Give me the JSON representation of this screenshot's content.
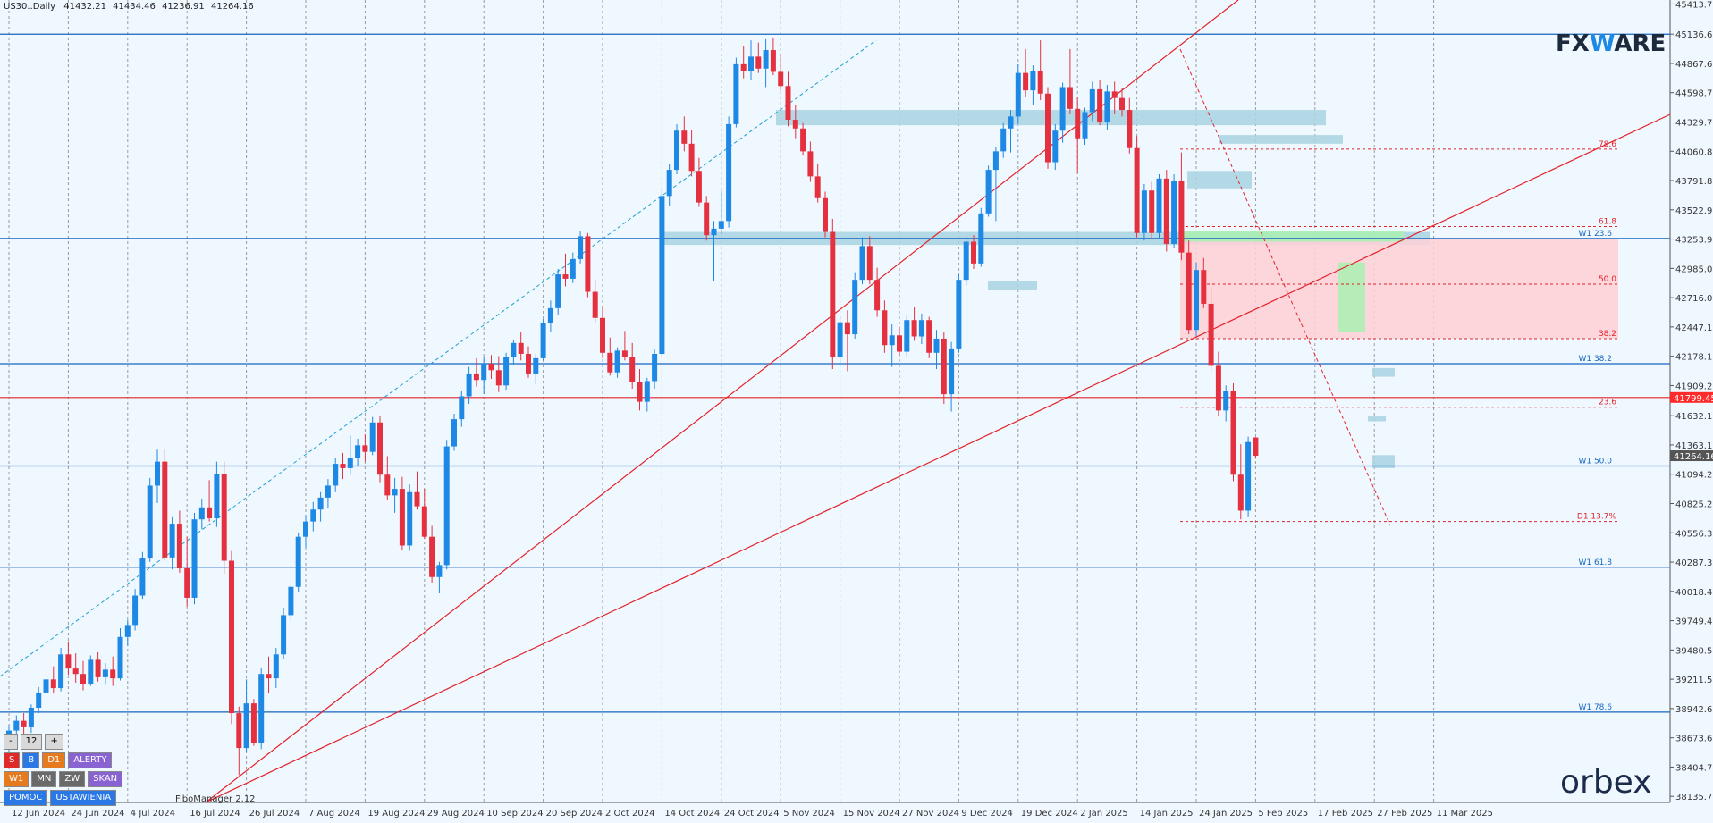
{
  "symbol": "US30..Daily",
  "ohlc": [
    "41432.21",
    "41434.46",
    "41236.91",
    "41264.16"
  ],
  "logos": {
    "fxware_left": "FX",
    "fxware_w": "W",
    "fxware_right": "ARE",
    "orbex": "orbex"
  },
  "indicator_name": "FiboManager 2.12",
  "panel": {
    "row1": [
      "-",
      "12",
      "+"
    ],
    "row2": [
      "S",
      "B",
      "D1",
      "ALERTY"
    ],
    "row3": [
      "W1",
      "MN",
      "ZW",
      "SKAN"
    ],
    "row4": [
      "POMOC",
      "USTAWIENIA"
    ]
  },
  "colors": {
    "background": "#f0f8ff",
    "bull": "#1e88e5",
    "bear": "#e53040",
    "trendline": "#e3222a",
    "level": "#1565c0",
    "zone_blue": "#a9d4e2",
    "zone_pink": "#ffd0d6",
    "zone_green": "#a8f0b0"
  },
  "chart_data": {
    "type": "candlestick",
    "timeframe": "Daily",
    "y_ticks": [
      45413.75,
      45136.6,
      44867.65,
      44598.7,
      44329.75,
      44060.8,
      43791.85,
      43522.9,
      43253.95,
      42985.0,
      42716.05,
      42447.1,
      42178.15,
      41909.2,
      41632.1,
      41363.15,
      41094.2,
      40825.25,
      40556.3,
      40287.35,
      40018.4,
      39749.45,
      39480.5,
      39211.55,
      38942.6,
      38673.65,
      38404.7,
      38135.75
    ],
    "ylim": [
      38080,
      45450
    ],
    "x_tick_labels": [
      "12 Jun 2024",
      "24 Jun 2024",
      "4 Jul 2024",
      "16 Jul 2024",
      "26 Jul 2024",
      "7 Aug 2024",
      "19 Aug 2024",
      "29 Aug 2024",
      "10 Sep 2024",
      "20 Sep 2024",
      "2 Oct 2024",
      "14 Oct 2024",
      "24 Oct 2024",
      "5 Nov 2024",
      "15 Nov 2024",
      "27 Nov 2024",
      "9 Dec 2024",
      "19 Dec 2024",
      "2 Jan 2025",
      "14 Jan 2025",
      "24 Jan 2025",
      "5 Feb 2025",
      "17 Feb 2025",
      "27 Feb 2025",
      "11 Mar 2025"
    ],
    "x_tick_index": [
      0,
      8,
      16,
      24,
      32,
      40,
      48,
      56,
      64,
      72,
      80,
      88,
      96,
      104,
      112,
      120,
      128,
      136,
      144,
      152,
      160,
      168,
      176,
      184,
      192
    ],
    "price_labels": [
      {
        "value": 41799.45,
        "text": "41799.45",
        "color": "#ff2a2a"
      },
      {
        "value": 41264.16,
        "text": "41264.16",
        "color": "#555555"
      }
    ],
    "horizontal_levels": [
      {
        "price": 45136,
        "label": "",
        "color": "#1565c0"
      },
      {
        "price": 43260,
        "label": "W1 23.6",
        "color": "#1565c0"
      },
      {
        "price": 42110,
        "label": "W1 38.2",
        "color": "#1565c0"
      },
      {
        "price": 41170,
        "label": "W1 50.0",
        "color": "#1565c0"
      },
      {
        "price": 40240,
        "label": "W1 61.8",
        "color": "#1565c0"
      },
      {
        "price": 38910,
        "label": "W1 78.6",
        "color": "#1565c0"
      },
      {
        "price": 41799.45,
        "label": "",
        "color": "#e3222a"
      }
    ],
    "fib_levels": [
      {
        "price": 44080,
        "label": "78.6"
      },
      {
        "price": 43370,
        "label": "61.8"
      },
      {
        "price": 42840,
        "label": "50.0"
      },
      {
        "price": 42340,
        "label": "38.2"
      },
      {
        "price": 41710,
        "label": "23.6"
      },
      {
        "price": 40660,
        "label": "D1 13.7%"
      }
    ],
    "candles": [
      [
        38620,
        38790,
        38540,
        38740
      ],
      [
        38740,
        38880,
        38660,
        38830
      ],
      [
        38830,
        38900,
        38700,
        38770
      ],
      [
        38770,
        38980,
        38720,
        38950
      ],
      [
        38950,
        39140,
        38900,
        39090
      ],
      [
        39090,
        39260,
        39000,
        39210
      ],
      [
        39210,
        39330,
        39080,
        39130
      ],
      [
        39130,
        39500,
        39100,
        39440
      ],
      [
        39440,
        39560,
        39250,
        39310
      ],
      [
        39310,
        39450,
        39180,
        39260
      ],
      [
        39260,
        39380,
        39110,
        39170
      ],
      [
        39170,
        39430,
        39150,
        39390
      ],
      [
        39390,
        39460,
        39190,
        39230
      ],
      [
        39230,
        39360,
        39160,
        39300
      ],
      [
        39300,
        39420,
        39150,
        39220
      ],
      [
        39220,
        39680,
        39200,
        39600
      ],
      [
        39600,
        39760,
        39520,
        39710
      ],
      [
        39710,
        40040,
        39660,
        39980
      ],
      [
        39980,
        40380,
        39950,
        40320
      ],
      [
        40320,
        41060,
        40290,
        40990
      ],
      [
        40990,
        41320,
        40830,
        41210
      ],
      [
        41210,
        41320,
        40300,
        40330
      ],
      [
        40330,
        40700,
        40220,
        40640
      ],
      [
        40640,
        40760,
        40190,
        40230
      ],
      [
        40230,
        40520,
        39880,
        39960
      ],
      [
        39960,
        40740,
        39900,
        40680
      ],
      [
        40680,
        40870,
        40590,
        40790
      ],
      [
        40790,
        41040,
        40660,
        40690
      ],
      [
        40690,
        41210,
        40610,
        41100
      ],
      [
        41100,
        41210,
        40180,
        40300
      ],
      [
        40300,
        40390,
        38800,
        38900
      ],
      [
        38900,
        38960,
        38330,
        38580
      ],
      [
        38580,
        39210,
        38540,
        38990
      ],
      [
        38990,
        39030,
        38600,
        38630
      ],
      [
        38630,
        39320,
        38570,
        39260
      ],
      [
        39260,
        39420,
        39080,
        39220
      ],
      [
        39220,
        39500,
        39130,
        39440
      ],
      [
        39440,
        39870,
        39400,
        39800
      ],
      [
        39800,
        40100,
        39740,
        40060
      ],
      [
        40060,
        40560,
        40010,
        40520
      ],
      [
        40520,
        40720,
        40420,
        40660
      ],
      [
        40660,
        40840,
        40570,
        40770
      ],
      [
        40770,
        40930,
        40660,
        40880
      ],
      [
        40880,
        41050,
        40780,
        40990
      ],
      [
        40990,
        41240,
        40930,
        41190
      ],
      [
        41190,
        41290,
        41050,
        41150
      ],
      [
        41150,
        41450,
        41090,
        41240
      ],
      [
        41240,
        41420,
        41170,
        41360
      ],
      [
        41360,
        41460,
        41210,
        41300
      ],
      [
        41300,
        41620,
        41270,
        41570
      ],
      [
        41570,
        41630,
        41020,
        41090
      ],
      [
        41090,
        41260,
        40860,
        40900
      ],
      [
        40900,
        41060,
        40740,
        40960
      ],
      [
        40960,
        41070,
        40400,
        40440
      ],
      [
        40440,
        41000,
        40390,
        40930
      ],
      [
        40930,
        41120,
        40770,
        40800
      ],
      [
        40800,
        40960,
        40500,
        40520
      ],
      [
        40520,
        40620,
        40100,
        40150
      ],
      [
        40150,
        40290,
        40000,
        40260
      ],
      [
        40260,
        41410,
        40220,
        41350
      ],
      [
        41350,
        41650,
        41310,
        41600
      ],
      [
        41600,
        41860,
        41530,
        41810
      ],
      [
        41810,
        42080,
        41740,
        42020
      ],
      [
        42020,
        42160,
        41900,
        41960
      ],
      [
        41960,
        42170,
        41830,
        42110
      ],
      [
        42110,
        42190,
        41970,
        42050
      ],
      [
        42050,
        42180,
        41850,
        41910
      ],
      [
        41910,
        42210,
        41870,
        42170
      ],
      [
        42170,
        42330,
        42100,
        42300
      ],
      [
        42300,
        42400,
        42140,
        42200
      ],
      [
        42200,
        42270,
        41980,
        42020
      ],
      [
        42020,
        42200,
        41920,
        42160
      ],
      [
        42160,
        42520,
        42140,
        42480
      ],
      [
        42480,
        42690,
        42400,
        42620
      ],
      [
        42620,
        42980,
        42560,
        42930
      ],
      [
        42930,
        43120,
        42820,
        42890
      ],
      [
        42890,
        43130,
        42850,
        43070
      ],
      [
        43070,
        43330,
        43030,
        43280
      ],
      [
        43280,
        43310,
        42720,
        42770
      ],
      [
        42770,
        42880,
        42490,
        42530
      ],
      [
        42530,
        42640,
        42160,
        42210
      ],
      [
        42210,
        42350,
        42000,
        42030
      ],
      [
        42030,
        42260,
        41980,
        42230
      ],
      [
        42230,
        42410,
        42140,
        42170
      ],
      [
        42170,
        42300,
        41880,
        41940
      ],
      [
        41940,
        42060,
        41680,
        41760
      ],
      [
        41760,
        41980,
        41670,
        41950
      ],
      [
        41950,
        42240,
        41880,
        42200
      ],
      [
        42200,
        43720,
        42180,
        43650
      ],
      [
        43650,
        43940,
        43560,
        43890
      ],
      [
        43890,
        44310,
        43850,
        44250
      ],
      [
        44250,
        44380,
        44060,
        44130
      ],
      [
        44130,
        44260,
        43830,
        43880
      ],
      [
        43880,
        44000,
        43550,
        43590
      ],
      [
        43590,
        43650,
        43240,
        43290
      ],
      [
        43290,
        43420,
        42870,
        43350
      ],
      [
        43350,
        43700,
        43300,
        43420
      ],
      [
        43420,
        44380,
        43360,
        44310
      ],
      [
        44310,
        44920,
        44280,
        44860
      ],
      [
        44860,
        45030,
        44730,
        44800
      ],
      [
        44800,
        45080,
        44720,
        44930
      ],
      [
        44930,
        45060,
        44780,
        44820
      ],
      [
        44820,
        45090,
        44650,
        44990
      ],
      [
        44990,
        45100,
        44760,
        44790
      ],
      [
        44790,
        44960,
        44620,
        44660
      ],
      [
        44660,
        44790,
        44290,
        44350
      ],
      [
        44350,
        44490,
        44180,
        44270
      ],
      [
        44270,
        44320,
        44020,
        44060
      ],
      [
        44060,
        44150,
        43780,
        43830
      ],
      [
        43830,
        43950,
        43590,
        43630
      ],
      [
        43630,
        43690,
        43270,
        43320
      ],
      [
        43320,
        43440,
        42060,
        42170
      ],
      [
        42170,
        42540,
        42120,
        42490
      ],
      [
        42490,
        42600,
        42040,
        42380
      ],
      [
        42380,
        42950,
        42340,
        42880
      ],
      [
        42880,
        43270,
        42840,
        43190
      ],
      [
        43190,
        43280,
        42840,
        42880
      ],
      [
        42880,
        42990,
        42540,
        42600
      ],
      [
        42600,
        42690,
        42210,
        42280
      ],
      [
        42280,
        42470,
        42080,
        42370
      ],
      [
        42370,
        42450,
        42180,
        42220
      ],
      [
        42220,
        42560,
        42170,
        42510
      ],
      [
        42510,
        42630,
        42320,
        42360
      ],
      [
        42360,
        42570,
        42290,
        42510
      ],
      [
        42510,
        42540,
        42160,
        42210
      ],
      [
        42210,
        42420,
        42060,
        42340
      ],
      [
        42340,
        42400,
        41740,
        41830
      ],
      [
        41830,
        42310,
        41670,
        42250
      ],
      [
        42250,
        42930,
        42210,
        42880
      ],
      [
        42880,
        43280,
        42830,
        43230
      ],
      [
        43230,
        43290,
        42980,
        43030
      ],
      [
        43030,
        43540,
        43000,
        43490
      ],
      [
        43490,
        43930,
        43460,
        43890
      ],
      [
        43890,
        44100,
        43420,
        44060
      ],
      [
        44060,
        44320,
        44000,
        44270
      ],
      [
        44270,
        44440,
        44050,
        44380
      ],
      [
        44380,
        44860,
        44310,
        44780
      ],
      [
        44780,
        45000,
        44560,
        44620
      ],
      [
        44620,
        44850,
        44490,
        44800
      ],
      [
        44800,
        45080,
        44530,
        44590
      ],
      [
        44590,
        44650,
        43900,
        43960
      ],
      [
        43960,
        44310,
        43890,
        44250
      ],
      [
        44250,
        44690,
        44140,
        44650
      ],
      [
        44650,
        45000,
        44400,
        44450
      ],
      [
        44450,
        44560,
        43860,
        44180
      ],
      [
        44180,
        44460,
        44120,
        44420
      ],
      [
        44420,
        44700,
        44340,
        44630
      ],
      [
        44630,
        44720,
        44300,
        44330
      ],
      [
        44330,
        44670,
        44260,
        44610
      ],
      [
        44610,
        44700,
        44400,
        44550
      ],
      [
        44550,
        44640,
        44380,
        44440
      ],
      [
        44440,
        44550,
        44040,
        44090
      ],
      [
        44090,
        44200,
        43270,
        43310
      ],
      [
        43310,
        43760,
        43240,
        43700
      ],
      [
        43700,
        43780,
        43250,
        43310
      ],
      [
        43310,
        43850,
        43260,
        43810
      ],
      [
        43810,
        43890,
        43140,
        43210
      ],
      [
        43210,
        43850,
        43170,
        43790
      ],
      [
        43790,
        44050,
        43060,
        43130
      ],
      [
        43130,
        43240,
        42380,
        42420
      ],
      [
        42420,
        43040,
        42360,
        42970
      ],
      [
        42970,
        43080,
        42620,
        42660
      ],
      [
        42660,
        42810,
        42040,
        42090
      ],
      [
        42090,
        42220,
        41630,
        41680
      ],
      [
        41680,
        41910,
        41580,
        41860
      ],
      [
        41860,
        41930,
        41030,
        41090
      ],
      [
        41090,
        41370,
        40680,
        40760
      ],
      [
        40760,
        41440,
        40700,
        41390
      ],
      [
        41432.21,
        41434.46,
        41236.91,
        41264.16
      ]
    ]
  }
}
